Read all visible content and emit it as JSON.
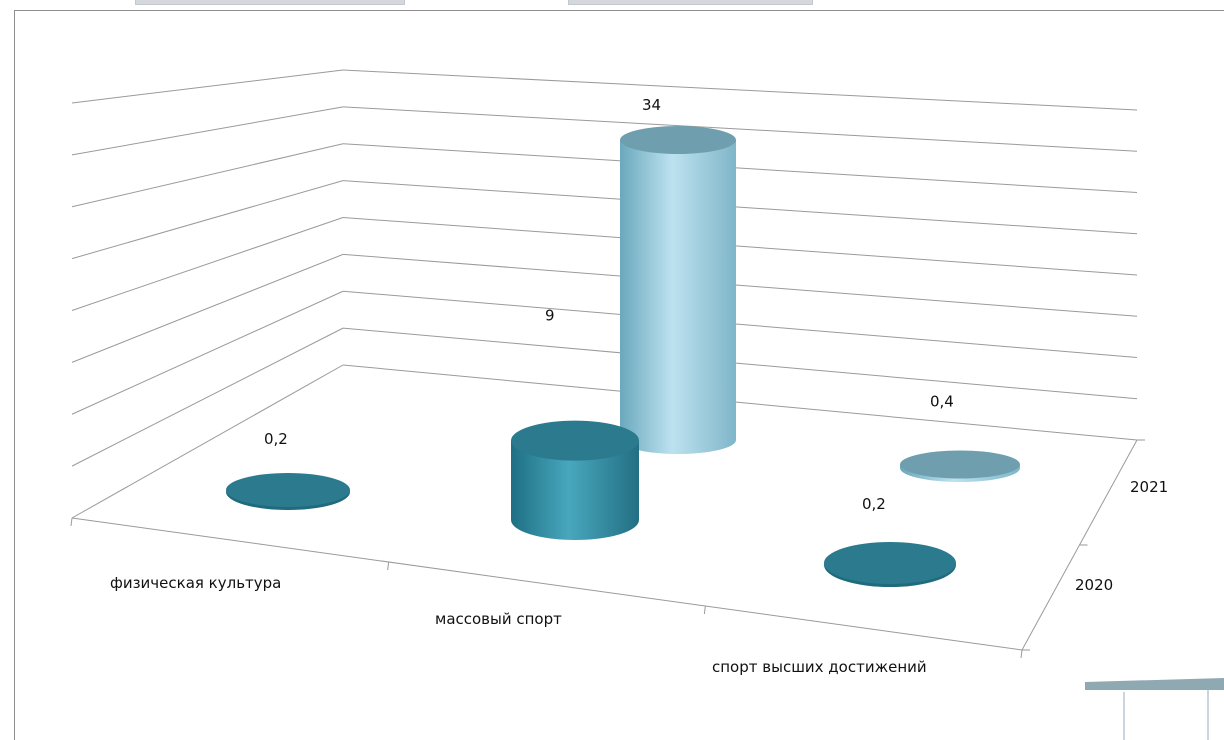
{
  "chart_data": {
    "type": "bar",
    "shape": "3d-cylinder",
    "categories": [
      "физическая культура",
      "массовый спорт",
      "спорт высших достижений"
    ],
    "series": [
      {
        "name": "2020",
        "values": [
          0.2,
          9,
          0.2
        ],
        "color": "#2f8aa0",
        "value_labels": [
          "0,2",
          "9",
          "0,2"
        ]
      },
      {
        "name": "2021",
        "values": [
          0,
          34,
          0.4
        ],
        "color": "#8ec9de",
        "value_labels": [
          "",
          "34",
          "0,4"
        ]
      }
    ],
    "ylim": [
      0,
      40
    ],
    "grid": true,
    "legend": "none"
  },
  "colors": {
    "series_2020": "#2f8aa0",
    "series_2021": "#8ec9de",
    "grid": "#9a9a9a",
    "axis": "#9a9a9a"
  }
}
